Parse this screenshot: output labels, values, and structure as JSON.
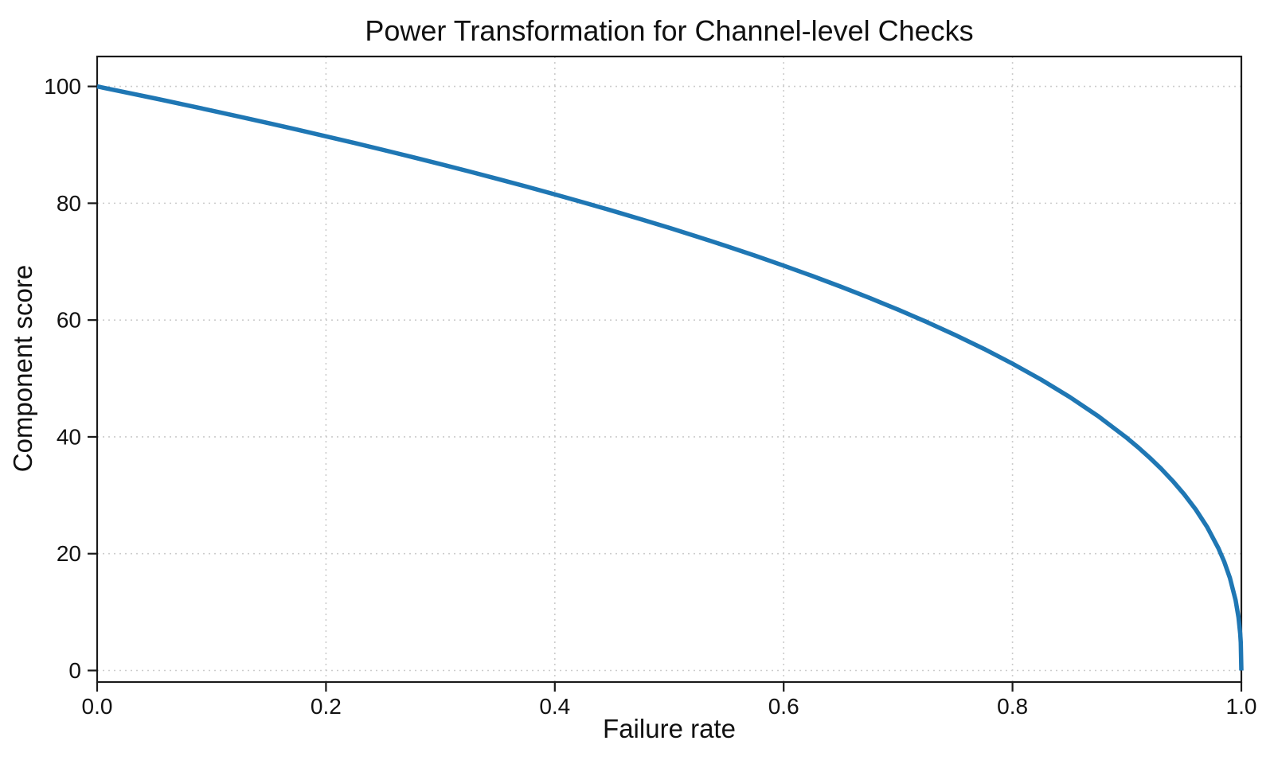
{
  "figure": {
    "title": "Power Transformation for Channel-level Checks",
    "xlabel": "Failure rate",
    "ylabel": "Component score"
  },
  "colors": {
    "line": "#1f77b4",
    "grid": "#cccccc",
    "spine": "#1a1a1a",
    "text": "#111111",
    "background": "#ffffff"
  },
  "chart_data": {
    "type": "line",
    "title": "Power Transformation for Channel-level Checks",
    "xlabel": "Failure rate",
    "ylabel": "Component score",
    "xlim": [
      0.0,
      1.0
    ],
    "ylim": [
      0,
      100
    ],
    "grid": true,
    "grid_style": "dotted",
    "legend": false,
    "x_ticks": [
      0.0,
      0.2,
      0.4,
      0.6,
      0.8,
      1.0
    ],
    "x_tick_labels": [
      "0.0",
      "0.2",
      "0.4",
      "0.6",
      "0.8",
      "1.0"
    ],
    "y_ticks": [
      0,
      20,
      40,
      60,
      80,
      100
    ],
    "y_tick_labels": [
      "0",
      "20",
      "40",
      "60",
      "80",
      "100"
    ],
    "series": [
      {
        "name": "component-score-curve",
        "color": "#1f77b4",
        "line_width": 5.5,
        "x": [
          0,
          0.025,
          0.05,
          0.075,
          0.1,
          0.125,
          0.15,
          0.175,
          0.2,
          0.225,
          0.25,
          0.275,
          0.3,
          0.325,
          0.35,
          0.375,
          0.4,
          0.425,
          0.45,
          0.475,
          0.5,
          0.525,
          0.55,
          0.575,
          0.6,
          0.625,
          0.65,
          0.675,
          0.7,
          0.725,
          0.75,
          0.775,
          0.8,
          0.825,
          0.85,
          0.875,
          0.9,
          0.91,
          0.92,
          0.93,
          0.94,
          0.95,
          0.96,
          0.97,
          0.98,
          0.985,
          0.99,
          0.995,
          0.9975,
          0.999,
          0.9995,
          1.0
        ],
        "y": [
          100,
          98.99,
          97.97,
          96.93,
          95.87,
          94.8,
          93.71,
          92.59,
          91.46,
          90.31,
          89.13,
          87.93,
          86.7,
          85.45,
          84.17,
          82.86,
          81.52,
          80.14,
          78.73,
          77.28,
          75.79,
          74.25,
          72.66,
          71.02,
          69.31,
          67.55,
          65.71,
          63.79,
          61.78,
          59.67,
          57.43,
          55.07,
          52.53,
          49.8,
          46.82,
          43.53,
          39.81,
          38.17,
          36.41,
          34.52,
          32.45,
          30.17,
          27.6,
          24.6,
          20.91,
          18.64,
          15.85,
          12.01,
          9.11,
          6.31,
          4.78,
          0
        ]
      }
    ]
  }
}
